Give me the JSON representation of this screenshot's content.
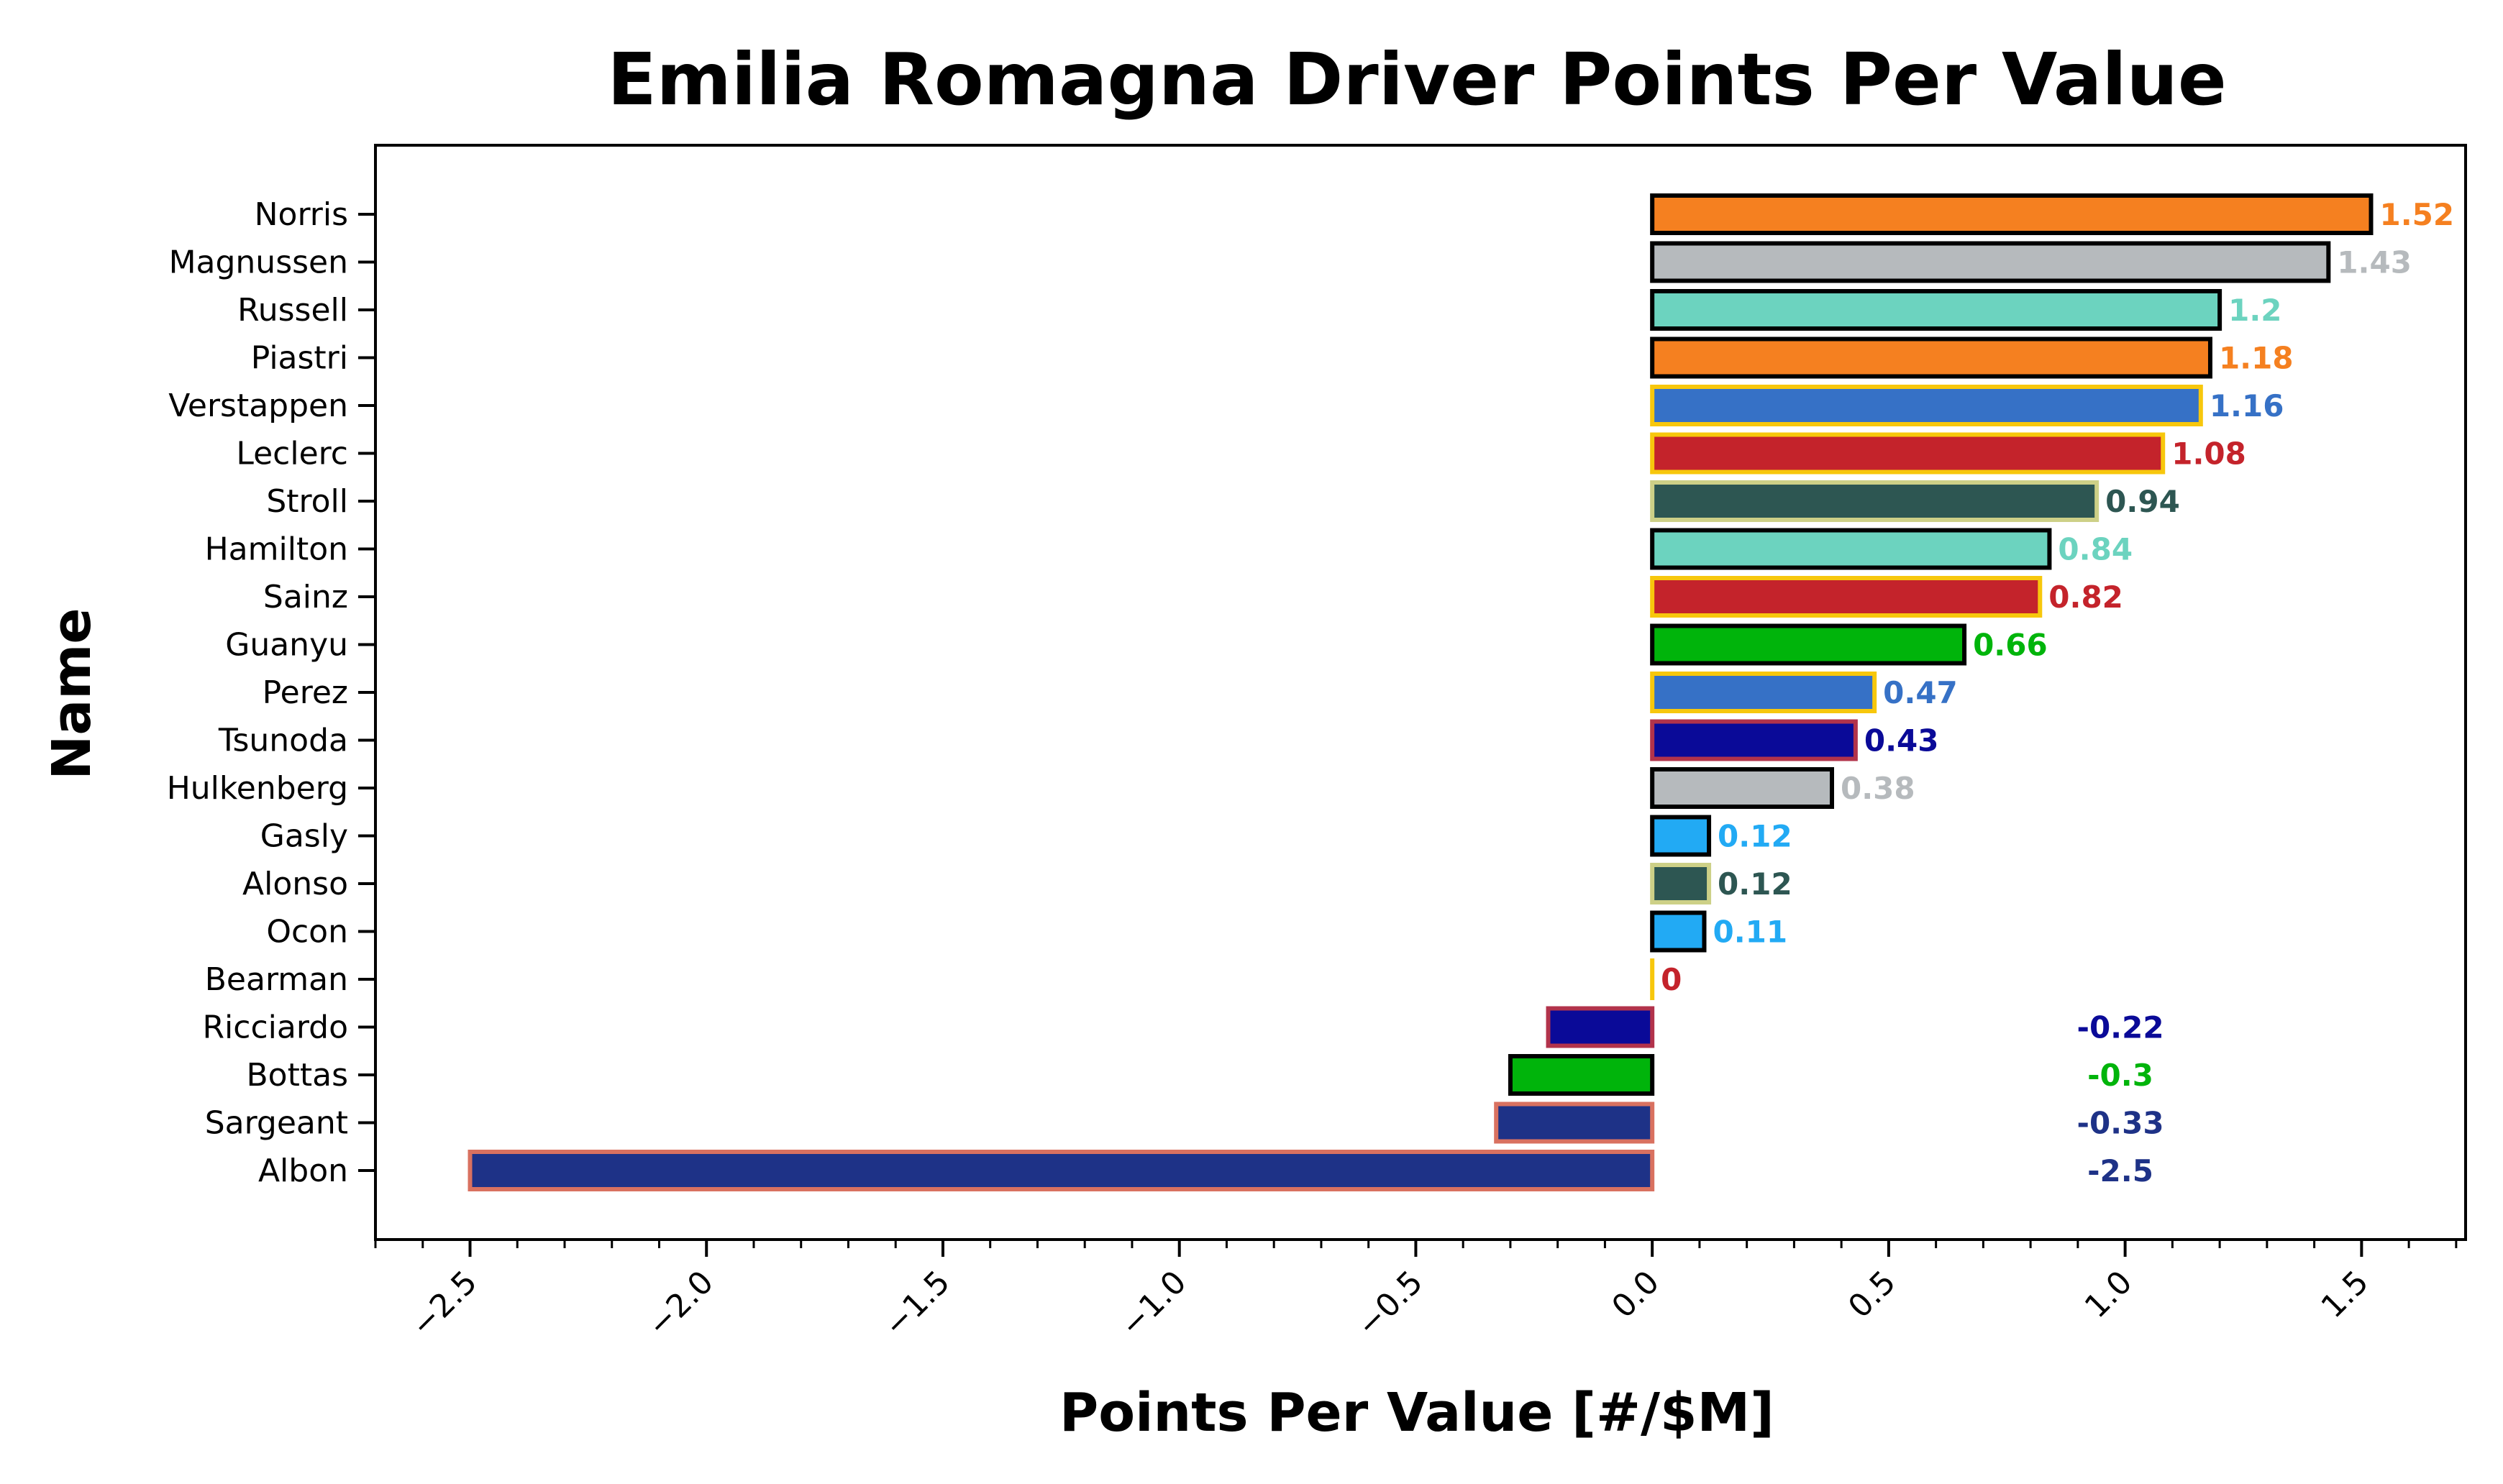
{
  "chart_data": {
    "type": "bar",
    "orientation": "horizontal",
    "title": "Emilia Romagna Driver Points Per Value",
    "xlabel": "Points Per Value [#/$M]",
    "ylabel": "Name",
    "xlim": [
      -2.7,
      1.72
    ],
    "xticks": [
      -2.5,
      -2.0,
      -1.5,
      -1.0,
      -0.5,
      0.0,
      0.5,
      1.0,
      1.5
    ],
    "xtick_labels": [
      "−2.5",
      "−2.0",
      "−1.5",
      "−1.0",
      "−0.5",
      "0.0",
      "0.5",
      "1.0",
      "1.5"
    ],
    "grid": false,
    "bars": [
      {
        "name": "Norris",
        "value": 1.52,
        "label": "1.52",
        "fill": "#f58020",
        "edge": "#000000",
        "text_color": "#f58020"
      },
      {
        "name": "Magnussen",
        "value": 1.43,
        "label": "1.43",
        "fill": "#b6babd",
        "edge": "#000000",
        "text_color": "#b6babd"
      },
      {
        "name": "Russell",
        "value": 1.2,
        "label": "1.2",
        "fill": "#6cd3bf",
        "edge": "#000000",
        "text_color": "#6cd3bf"
      },
      {
        "name": "Piastri",
        "value": 1.18,
        "label": "1.18",
        "fill": "#f58020",
        "edge": "#000000",
        "text_color": "#f58020"
      },
      {
        "name": "Verstappen",
        "value": 1.16,
        "label": "1.16",
        "fill": "#3671c6",
        "edge": "#f7c70c",
        "text_color": "#3671c6"
      },
      {
        "name": "Leclerc",
        "value": 1.08,
        "label": "1.08",
        "fill": "#c4232b",
        "edge": "#f7c70c",
        "text_color": "#c4232b"
      },
      {
        "name": "Stroll",
        "value": 0.94,
        "label": "0.94",
        "fill": "#2d5652",
        "edge": "#cdd087",
        "text_color": "#2d5652"
      },
      {
        "name": "Hamilton",
        "value": 0.84,
        "label": "0.84",
        "fill": "#6cd3bf",
        "edge": "#000000",
        "text_color": "#6cd3bf"
      },
      {
        "name": "Sainz",
        "value": 0.82,
        "label": "0.82",
        "fill": "#c4232b",
        "edge": "#f7c70c",
        "text_color": "#c4232b"
      },
      {
        "name": "Guanyu",
        "value": 0.66,
        "label": "0.66",
        "fill": "#00b40b",
        "edge": "#000000",
        "text_color": "#00b40b"
      },
      {
        "name": "Perez",
        "value": 0.47,
        "label": "0.47",
        "fill": "#3671c6",
        "edge": "#f7c70c",
        "text_color": "#3671c6"
      },
      {
        "name": "Tsunoda",
        "value": 0.43,
        "label": "0.43",
        "fill": "#0a0a98",
        "edge": "#b2334b",
        "text_color": "#0a0a98"
      },
      {
        "name": "Hulkenberg",
        "value": 0.38,
        "label": "0.38",
        "fill": "#b6babd",
        "edge": "#000000",
        "text_color": "#b6babd"
      },
      {
        "name": "Gasly",
        "value": 0.12,
        "label": "0.12",
        "fill": "#22aaf4",
        "edge": "#000000",
        "text_color": "#22aaf4"
      },
      {
        "name": "Alonso",
        "value": 0.12,
        "label": "0.12",
        "fill": "#2d5652",
        "edge": "#cdd087",
        "text_color": "#2d5652"
      },
      {
        "name": "Ocon",
        "value": 0.11,
        "label": "0.11",
        "fill": "#22aaf4",
        "edge": "#000000",
        "text_color": "#22aaf4"
      },
      {
        "name": "Bearman",
        "value": 0,
        "label": "0",
        "fill": "#c4232b",
        "edge": "#f7c70c",
        "text_color": "#c4232b"
      },
      {
        "name": "Ricciardo",
        "value": -0.22,
        "label": "-0.22",
        "fill": "#0a0a98",
        "edge": "#b2334b",
        "text_color": "#0a0a98"
      },
      {
        "name": "Bottas",
        "value": -0.3,
        "label": "-0.3",
        "fill": "#00b40b",
        "edge": "#000000",
        "text_color": "#00b40b"
      },
      {
        "name": "Sargeant",
        "value": -0.33,
        "label": "-0.33",
        "fill": "#1e3287",
        "edge": "#d97160",
        "text_color": "#1e3287"
      },
      {
        "name": "Albon",
        "value": -2.5,
        "label": "-2.5",
        "fill": "#1e3287",
        "edge": "#d97160",
        "text_color": "#1e3287"
      }
    ]
  }
}
